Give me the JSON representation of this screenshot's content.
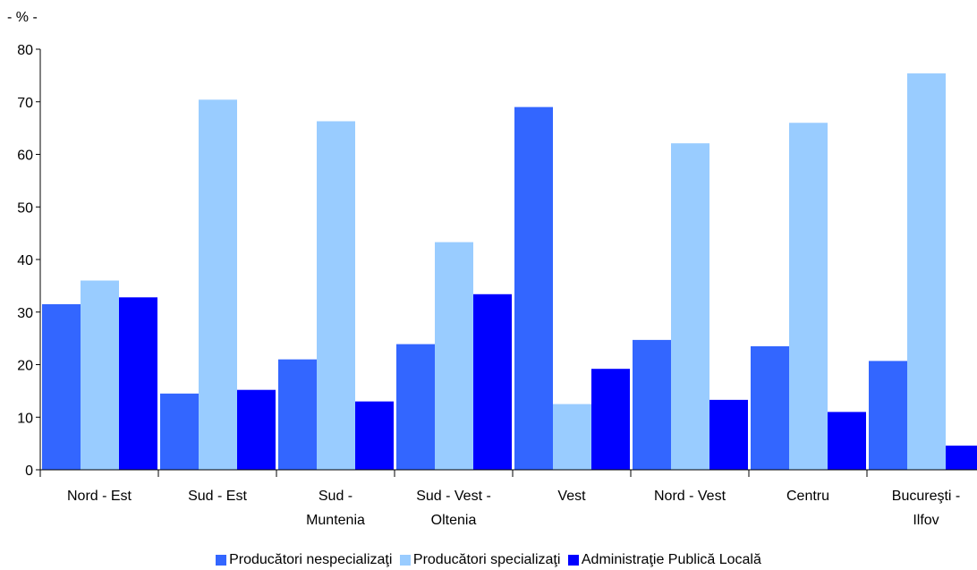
{
  "chart_data": {
    "type": "bar",
    "unit_label": "- % -",
    "ylim": [
      0,
      80
    ],
    "yticks": [
      0,
      10,
      20,
      30,
      40,
      50,
      60,
      70,
      80
    ],
    "grid": false,
    "legend_position": "bottom",
    "categories": [
      [
        "Nord - Est"
      ],
      [
        "Sud - Est"
      ],
      [
        "Sud -",
        "Muntenia"
      ],
      [
        "Sud - Vest -",
        "Oltenia"
      ],
      [
        "Vest"
      ],
      [
        "Nord - Vest"
      ],
      [
        "Centru"
      ],
      [
        "Bucureşti -",
        "Ilfov"
      ]
    ],
    "series": [
      {
        "name": "Producători nespecializaţi",
        "color": "#3366ff",
        "values": [
          31.5,
          14.5,
          21.0,
          23.9,
          69.0,
          24.7,
          23.5,
          20.7
        ]
      },
      {
        "name": "Producători specializaţi",
        "color": "#99ccff",
        "values": [
          36.0,
          70.4,
          66.3,
          43.3,
          12.5,
          62.1,
          66.0,
          75.4
        ]
      },
      {
        "name": "Administraţie Publică Locală",
        "color": "#0000ff",
        "values": [
          32.8,
          15.2,
          13.0,
          33.4,
          19.2,
          13.3,
          11.0,
          4.6
        ]
      }
    ]
  }
}
